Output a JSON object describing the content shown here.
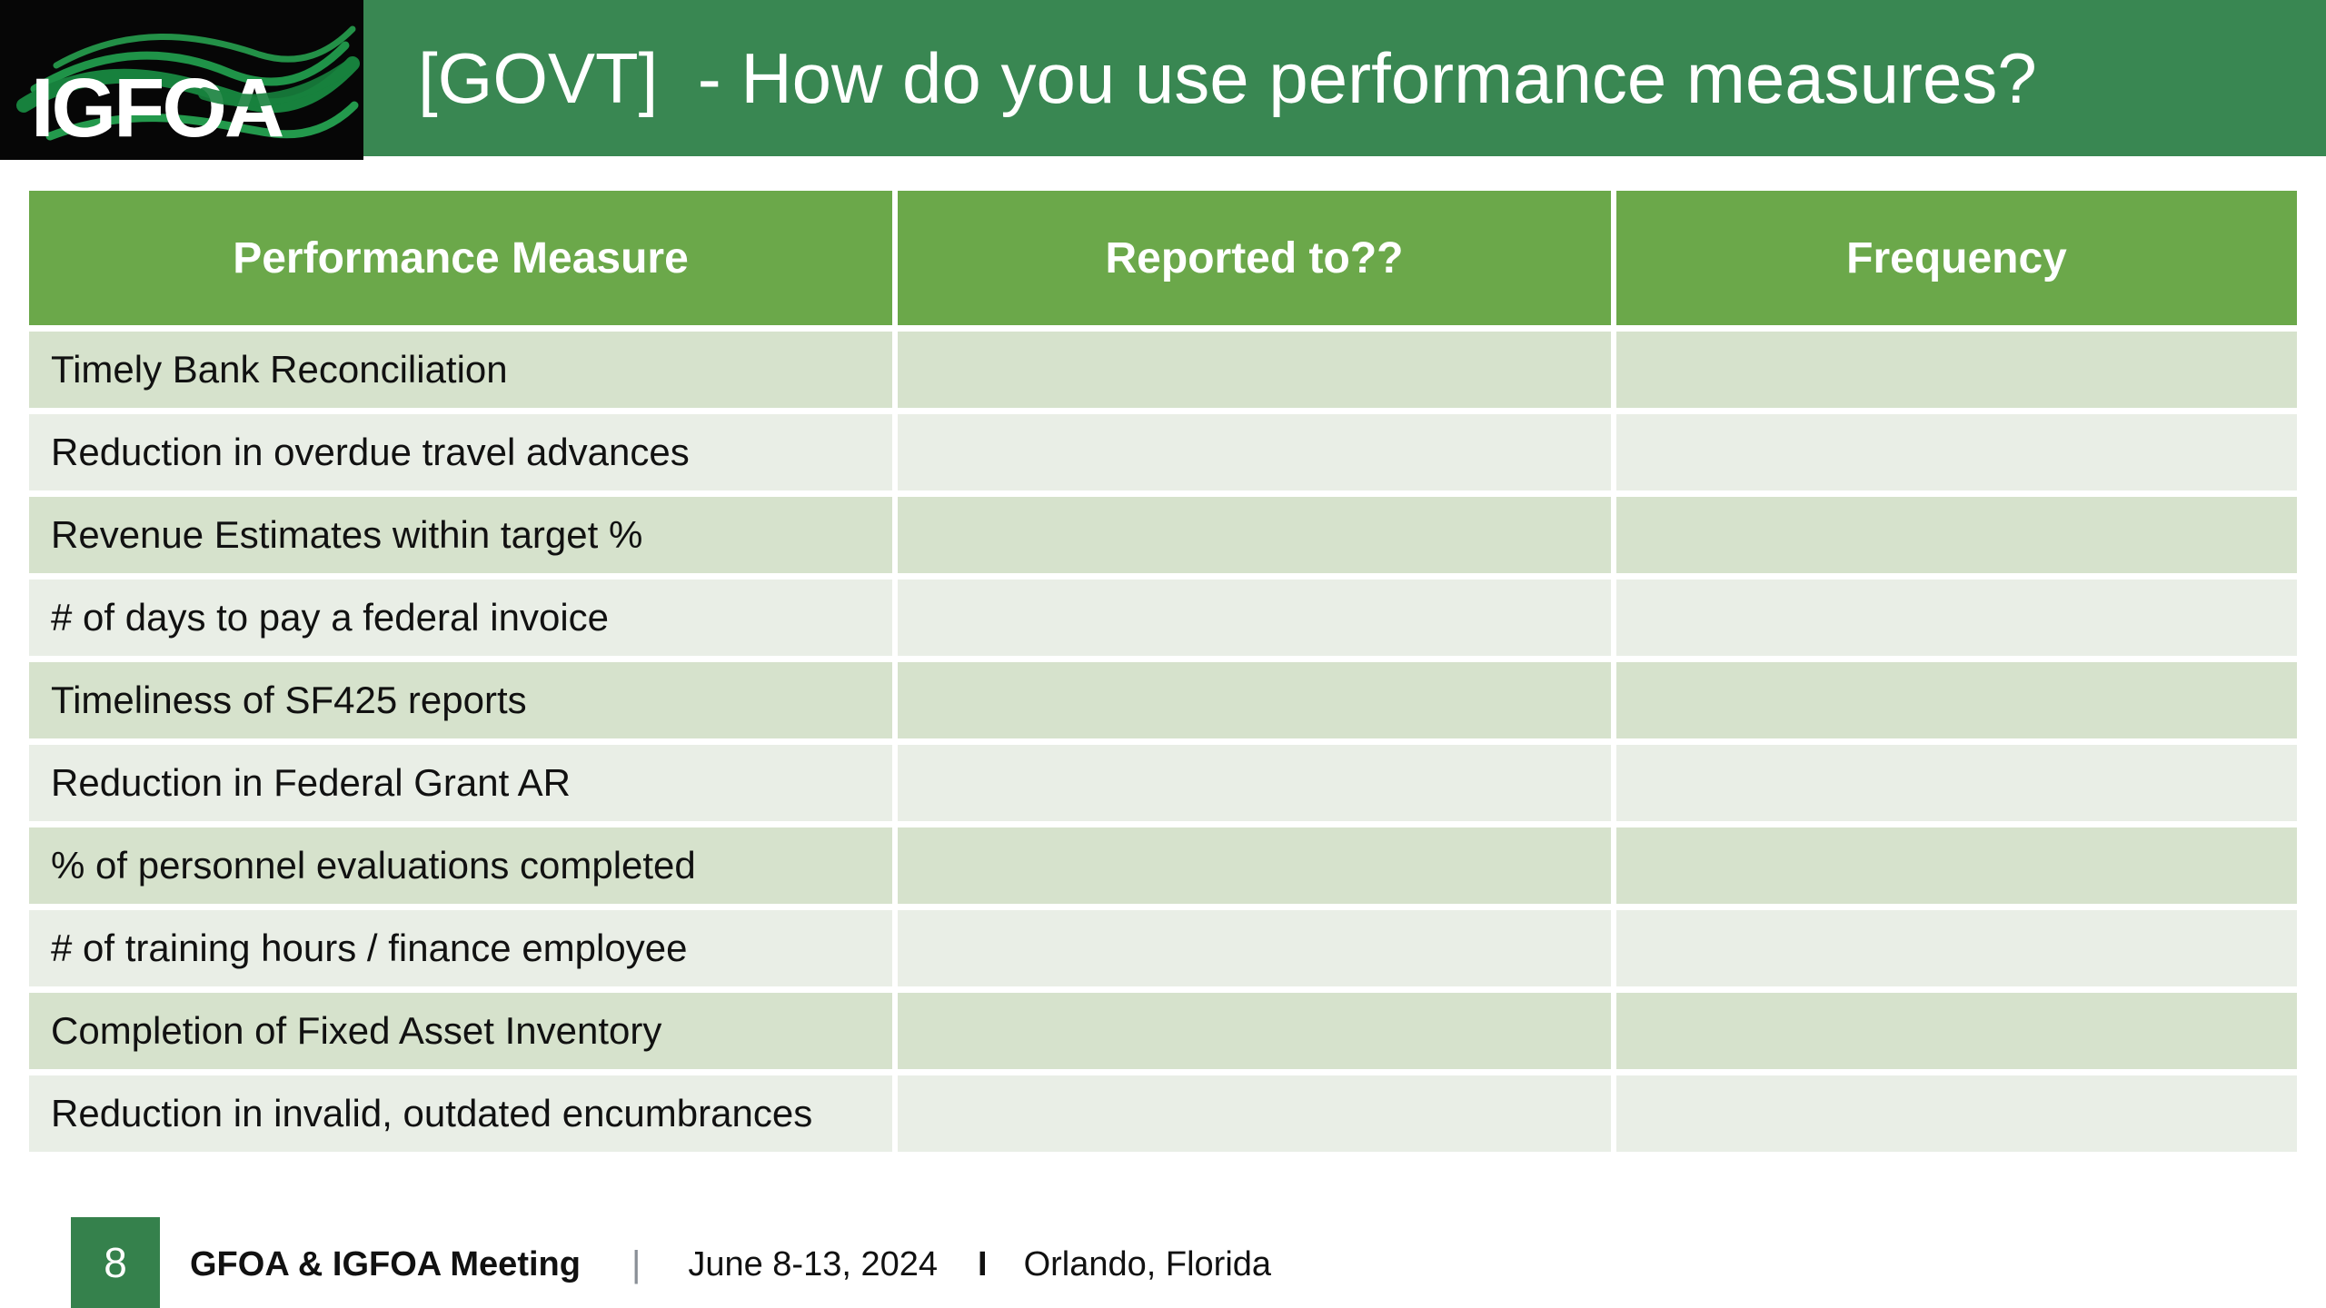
{
  "slide": {
    "logo_text": "IGFOA",
    "header": {
      "title": "[GOVT]  - How do you use performance measures?"
    },
    "table": {
      "headers": [
        "Performance Measure",
        "Reported to??",
        "Frequency"
      ],
      "rows": [
        [
          "Timely Bank Reconciliation",
          "",
          ""
        ],
        [
          "Reduction in overdue travel advances",
          "",
          ""
        ],
        [
          "Revenue Estimates within target %",
          "",
          ""
        ],
        [
          "# of days to pay a federal invoice",
          "",
          ""
        ],
        [
          "Timeliness of SF425 reports",
          "",
          ""
        ],
        [
          "Reduction in Federal Grant AR",
          "",
          ""
        ],
        [
          "% of personnel evaluations completed",
          "",
          ""
        ],
        [
          "# of training hours / finance employee",
          "",
          ""
        ],
        [
          "Completion of Fixed Asset Inventory",
          "",
          ""
        ],
        [
          "Reduction in invalid, outdated encumbrances",
          "",
          ""
        ]
      ]
    },
    "footer": {
      "page_number": "8",
      "meeting_name": "GFOA & IGFOA Meeting",
      "separator_1": "|",
      "date": "June 8-13, 2024",
      "separator_2": "I",
      "location": "Orlando, Florida"
    },
    "colors": {
      "banner_green": "#398752",
      "header_green": "#6ba84a",
      "row_sage": "#d6e2cc",
      "row_light": "#e9eee6",
      "footer_green": "#35814c",
      "logo_bg": "#060606",
      "swoosh_bright": "#27a04f",
      "swoosh_dark": "#17813d",
      "swoosh_mid": "#1f9348",
      "title_text": "#ffffff",
      "row_text": "#111111"
    }
  }
}
